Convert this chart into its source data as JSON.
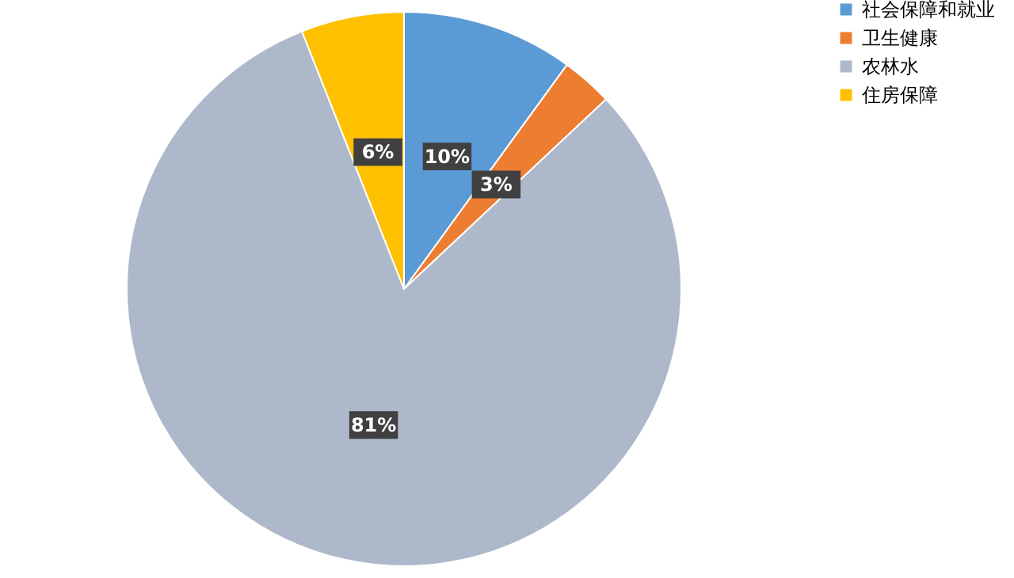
{
  "chart_data": {
    "type": "pie",
    "categories": [
      "社会保障和就业",
      "卫生健康",
      "农林水",
      "住房保障"
    ],
    "values": [
      10,
      3,
      81,
      6
    ],
    "colors": [
      "#5b9bd5",
      "#ed7d31",
      "#adb9ca",
      "#ffc000"
    ],
    "value_labels": [
      "10%",
      "3%",
      "81%",
      "6%"
    ],
    "legend": "right"
  }
}
